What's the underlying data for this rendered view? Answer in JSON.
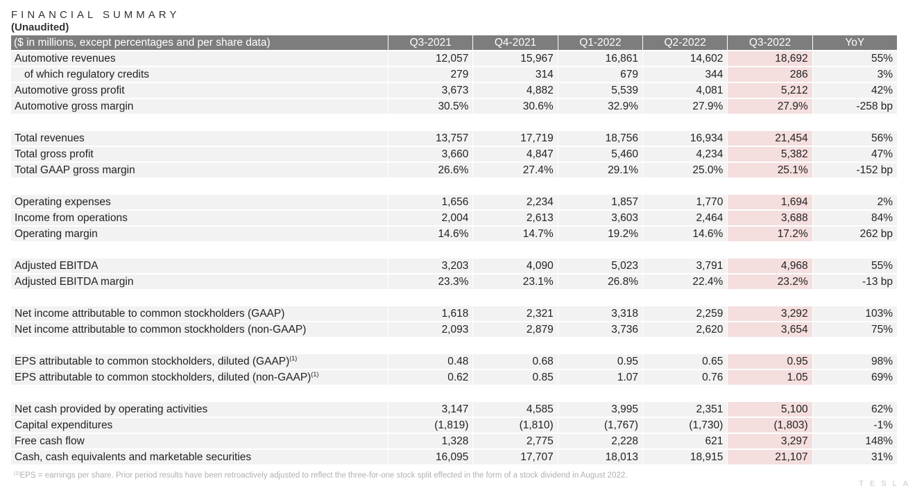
{
  "title": "FINANCIAL SUMMARY",
  "subtitle": "(Unaudited)",
  "header": [
    "($ in millions, except percentages and per share data)",
    "Q3-2021",
    "Q4-2021",
    "Q1-2022",
    "Q2-2022",
    "Q3-2022",
    "YoY"
  ],
  "groups": [
    [
      {
        "label": "Automotive revenues",
        "values": [
          "12,057",
          "15,967",
          "16,861",
          "14,602",
          "18,692",
          "55%"
        ]
      },
      {
        "label": "of which regulatory credits",
        "indent": true,
        "values": [
          "279",
          "314",
          "679",
          "344",
          "286",
          "3%"
        ]
      },
      {
        "label": "Automotive gross profit",
        "values": [
          "3,673",
          "4,882",
          "5,539",
          "4,081",
          "5,212",
          "42%"
        ]
      },
      {
        "label": "Automotive gross margin",
        "values": [
          "30.5%",
          "30.6%",
          "32.9%",
          "27.9%",
          "27.9%",
          "-258 bp"
        ]
      }
    ],
    [
      {
        "label": "Total revenues",
        "values": [
          "13,757",
          "17,719",
          "18,756",
          "16,934",
          "21,454",
          "56%"
        ]
      },
      {
        "label": "Total gross profit",
        "values": [
          "3,660",
          "4,847",
          "5,460",
          "4,234",
          "5,382",
          "47%"
        ]
      },
      {
        "label": "Total GAAP gross margin",
        "values": [
          "26.6%",
          "27.4%",
          "29.1%",
          "25.0%",
          "25.1%",
          "-152 bp"
        ]
      }
    ],
    [
      {
        "label": "Operating expenses",
        "values": [
          "1,656",
          "2,234",
          "1,857",
          "1,770",
          "1,694",
          "2%"
        ]
      },
      {
        "label": "Income from operations",
        "values": [
          "2,004",
          "2,613",
          "3,603",
          "2,464",
          "3,688",
          "84%"
        ]
      },
      {
        "label": "Operating margin",
        "values": [
          "14.6%",
          "14.7%",
          "19.2%",
          "14.6%",
          "17.2%",
          "262 bp"
        ]
      }
    ],
    [
      {
        "label": "Adjusted EBITDA",
        "values": [
          "3,203",
          "4,090",
          "5,023",
          "3,791",
          "4,968",
          "55%"
        ]
      },
      {
        "label": "Adjusted EBITDA margin",
        "values": [
          "23.3%",
          "23.1%",
          "26.8%",
          "22.4%",
          "23.2%",
          "-13 bp"
        ]
      }
    ],
    [
      {
        "label": "Net income attributable to common stockholders (GAAP)",
        "values": [
          "1,618",
          "2,321",
          "3,318",
          "2,259",
          "3,292",
          "103%"
        ]
      },
      {
        "label": "Net income attributable to common stockholders (non-GAAP)",
        "values": [
          "2,093",
          "2,879",
          "3,736",
          "2,620",
          "3,654",
          "75%"
        ]
      }
    ],
    [
      {
        "label": "EPS attributable to common stockholders, diluted (GAAP)",
        "sup": "(1)",
        "values": [
          "0.48",
          "0.68",
          "0.95",
          "0.65",
          "0.95",
          "98%"
        ]
      },
      {
        "label": "EPS attributable to common stockholders, diluted (non-GAAP)",
        "sup": "(1)",
        "values": [
          "0.62",
          "0.85",
          "1.07",
          "0.76",
          "1.05",
          "69%"
        ]
      }
    ],
    [
      {
        "label": "Net cash provided by operating activities",
        "values": [
          "3,147",
          "4,585",
          "3,995",
          "2,351",
          "5,100",
          "62%"
        ]
      },
      {
        "label": "Capital expenditures",
        "values": [
          "(1,819)",
          "(1,810)",
          "(1,767)",
          "(1,730)",
          "(1,803)",
          "-1%"
        ]
      },
      {
        "label": "Free cash flow",
        "values": [
          "1,328",
          "2,775",
          "2,228",
          "621",
          "3,297",
          "148%"
        ]
      },
      {
        "label": "Cash, cash equivalents and marketable securities",
        "values": [
          "16,095",
          "17,707",
          "18,013",
          "18,915",
          "21,107",
          "31%"
        ]
      }
    ]
  ],
  "highlight_column_index": 4,
  "highlight_color": "#f4dede",
  "header_color": "#7d7d7d",
  "footnote": {
    "marker": "(1)",
    "text": "EPS = earnings per share. Prior period results have been retroactively adjusted to reflect the three-for-one stock split effected in the form of a stock dividend in August 2022."
  },
  "logo_text": "TESLA"
}
